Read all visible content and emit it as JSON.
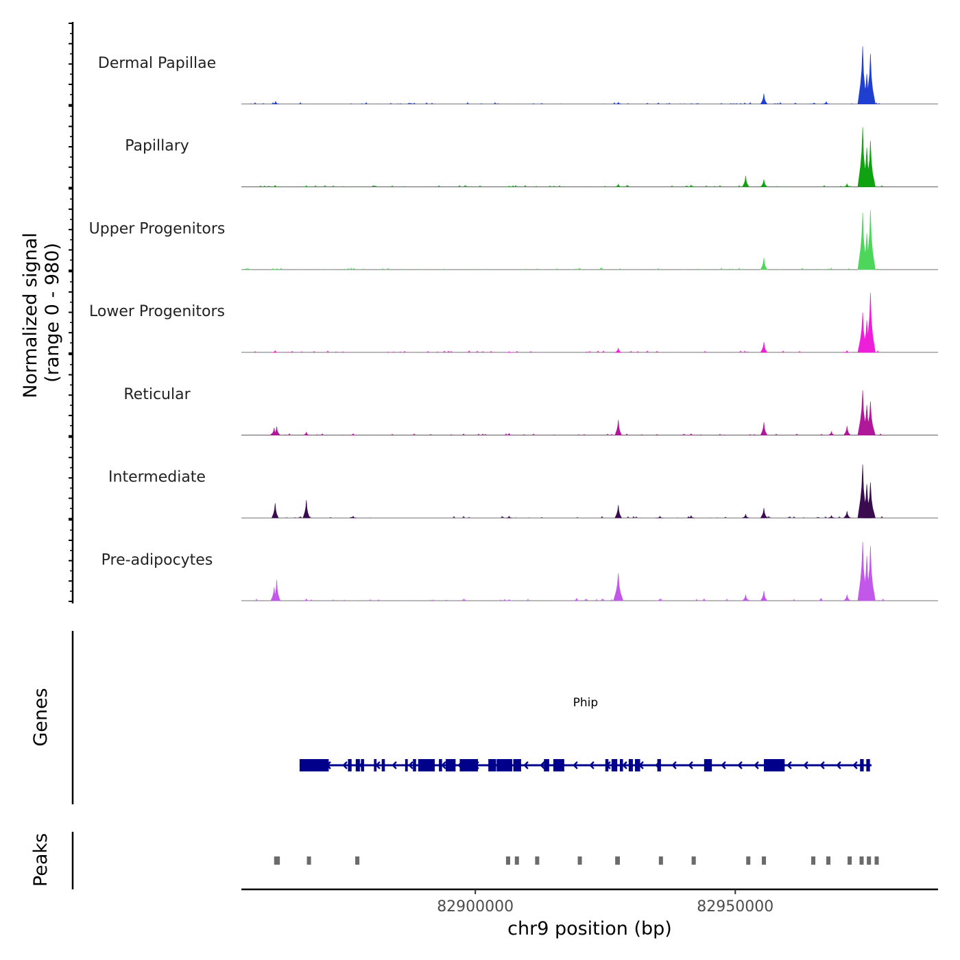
{
  "chart_data": {
    "type": "area",
    "title": "",
    "ylabel": "Normalized signal",
    "ylabel_range": "(range 0 - 980)",
    "xlabel": "chr9 position (bp)",
    "xlim": [
      82855000,
      82989000
    ],
    "ylim": [
      0,
      980
    ],
    "x_ticks": [
      82900000,
      82950000
    ],
    "x_tick_labels": [
      "82900000",
      "82950000"
    ],
    "tracks": [
      {
        "name": "Dermal Papillae",
        "color": "#1f3fd1",
        "peaks": [
          [
            82861600,
            55
          ],
          [
            82927500,
            40
          ],
          [
            82955500,
            180
          ],
          [
            82967500,
            50
          ],
          [
            82974500,
            950
          ],
          [
            82975300,
            500
          ],
          [
            82976000,
            830
          ]
        ]
      },
      {
        "name": "Papillary",
        "color": "#11a211",
        "peaks": [
          [
            82861500,
            35
          ],
          [
            82867500,
            30
          ],
          [
            82906500,
            25
          ],
          [
            82927500,
            55
          ],
          [
            82941500,
            40
          ],
          [
            82952000,
            190
          ],
          [
            82955500,
            130
          ],
          [
            82971500,
            60
          ],
          [
            82974500,
            980
          ],
          [
            82975300,
            650
          ],
          [
            82976000,
            760
          ]
        ]
      },
      {
        "name": "Upper Progenitors",
        "color": "#4ed65c",
        "peaks": [
          [
            82861500,
            15
          ],
          [
            82955500,
            200
          ],
          [
            82974500,
            940
          ],
          [
            82975300,
            600
          ],
          [
            82976000,
            980
          ]
        ]
      },
      {
        "name": "Lower Progenitors",
        "color": "#ee1fd9",
        "peaks": [
          [
            82861500,
            40
          ],
          [
            82906500,
            25
          ],
          [
            82927500,
            80
          ],
          [
            82955500,
            180
          ],
          [
            82971500,
            40
          ],
          [
            82974500,
            660
          ],
          [
            82975300,
            530
          ],
          [
            82976000,
            980
          ]
        ]
      },
      {
        "name": "Reticular",
        "color": "#b0189a",
        "peaks": [
          [
            82861300,
            130
          ],
          [
            82861800,
            150
          ],
          [
            82867500,
            60
          ],
          [
            82876500,
            35
          ],
          [
            82906500,
            40
          ],
          [
            82927500,
            260
          ],
          [
            82941500,
            35
          ],
          [
            82955500,
            220
          ],
          [
            82968500,
            70
          ],
          [
            82971500,
            160
          ],
          [
            82974500,
            740
          ],
          [
            82975300,
            500
          ],
          [
            82976000,
            560
          ]
        ]
      },
      {
        "name": "Intermediate",
        "color": "#3a0b4f",
        "peaks": [
          [
            82861500,
            250
          ],
          [
            82867500,
            300
          ],
          [
            82876500,
            40
          ],
          [
            82906500,
            40
          ],
          [
            82927500,
            220
          ],
          [
            82935500,
            40
          ],
          [
            82941500,
            50
          ],
          [
            82952000,
            70
          ],
          [
            82955500,
            170
          ],
          [
            82968500,
            50
          ],
          [
            82971500,
            120
          ],
          [
            82974500,
            880
          ],
          [
            82975300,
            560
          ],
          [
            82976000,
            590
          ]
        ]
      },
      {
        "name": "Pre-adipocytes",
        "color": "#c158ea",
        "peaks": [
          [
            82861300,
            230
          ],
          [
            82861800,
            350
          ],
          [
            82867500,
            40
          ],
          [
            82906500,
            30
          ],
          [
            82919500,
            50
          ],
          [
            82927500,
            460
          ],
          [
            82935500,
            40
          ],
          [
            82944000,
            40
          ],
          [
            82952000,
            110
          ],
          [
            82955500,
            170
          ],
          [
            82966500,
            50
          ],
          [
            82971500,
            110
          ],
          [
            82974500,
            970
          ],
          [
            82975300,
            740
          ],
          [
            82976000,
            900
          ]
        ]
      }
    ],
    "genes_panel_label": "Genes",
    "gene": {
      "name": "Phip",
      "strand": "-",
      "start": 82866200,
      "end": 82976200,
      "color": "#00008b",
      "exons": [
        [
          82866200,
          82871800
        ],
        [
          82875500,
          82876200
        ],
        [
          82877000,
          82877800
        ],
        [
          82878000,
          82878600
        ],
        [
          82880500,
          82881000
        ],
        [
          82882000,
          82882600
        ],
        [
          82886500,
          82887000
        ],
        [
          82888000,
          82888600
        ],
        [
          82889000,
          82892200
        ],
        [
          82893000,
          82893600
        ],
        [
          82894300,
          82896200
        ],
        [
          82897000,
          82900500
        ],
        [
          82902500,
          82904000
        ],
        [
          82904100,
          82907100
        ],
        [
          82907300,
          82908800
        ],
        [
          82913200,
          82914200
        ],
        [
          82915000,
          82917100
        ],
        [
          82925000,
          82925600
        ],
        [
          82926200,
          82927300
        ],
        [
          82927800,
          82928400
        ],
        [
          82929500,
          82930300
        ],
        [
          82930700,
          82931700
        ],
        [
          82935000,
          82935700
        ],
        [
          82944000,
          82945500
        ],
        [
          82955500,
          82959500
        ],
        [
          82974000,
          82974700
        ],
        [
          82975200,
          82975900
        ]
      ]
    },
    "peaks_panel_label": "Peaks",
    "peak_regions": [
      [
        82861300,
        82862400
      ],
      [
        82867600,
        82868300
      ],
      [
        82876900,
        82877700
      ],
      [
        82905900,
        82906700
      ],
      [
        82907600,
        82908300
      ],
      [
        82911500,
        82912200
      ],
      [
        82919700,
        82920400
      ],
      [
        82926900,
        82927800
      ],
      [
        82935300,
        82936000
      ],
      [
        82941600,
        82942400
      ],
      [
        82952100,
        82952800
      ],
      [
        82955100,
        82955900
      ],
      [
        82964600,
        82965400
      ],
      [
        82967500,
        82968300
      ],
      [
        82971600,
        82972400
      ],
      [
        82973900,
        82974600
      ],
      [
        82975300,
        82976100
      ],
      [
        82976800,
        82977500
      ]
    ]
  }
}
